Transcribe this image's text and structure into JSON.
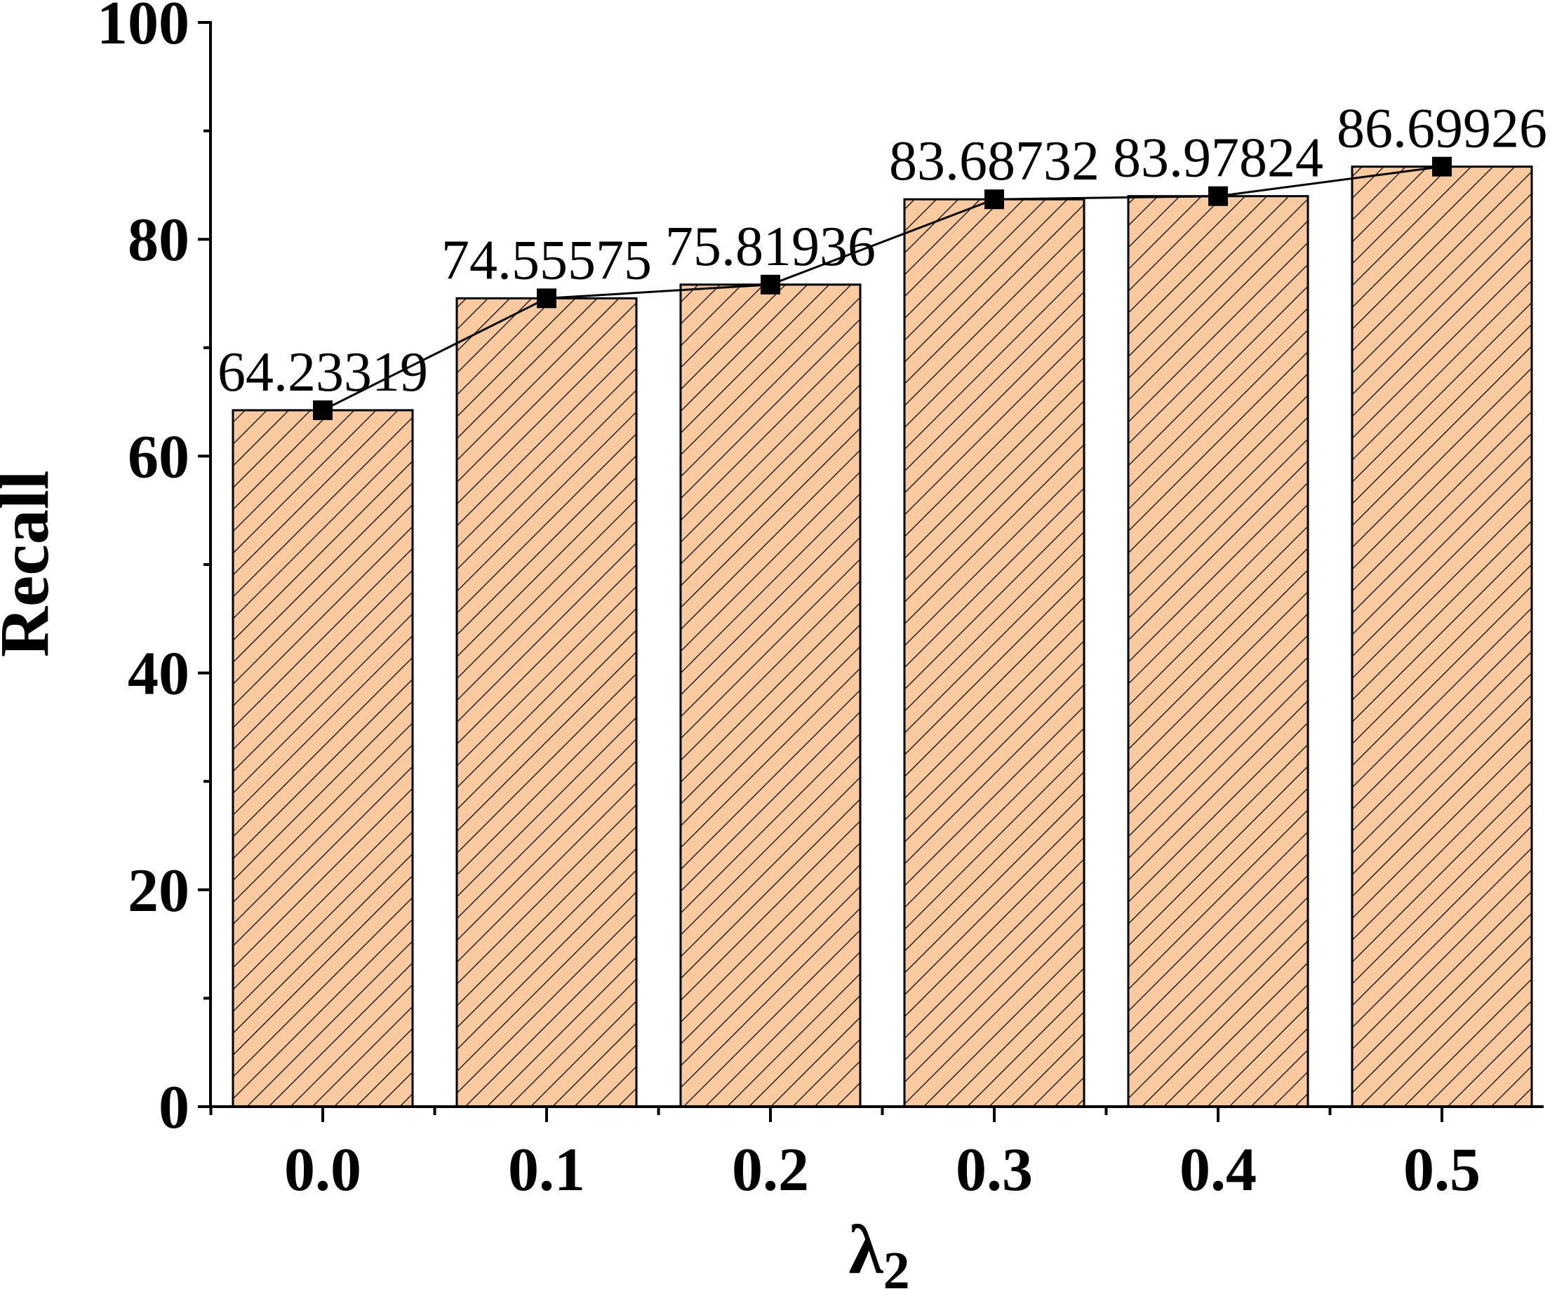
{
  "chart_data": {
    "type": "bar",
    "categories": [
      "0.0",
      "0.1",
      "0.2",
      "0.3",
      "0.4",
      "0.5"
    ],
    "values": [
      64.23319,
      74.55575,
      75.81936,
      83.68732,
      83.97824,
      86.69926
    ],
    "data_labels": [
      "64.23319",
      "74.55575",
      "75.81936",
      "83.68732",
      "83.97824",
      "86.69926"
    ],
    "overlay": "line-with-square-markers",
    "title": "",
    "xlabel": "λ",
    "xlabel_subscript": "2",
    "ylabel": "Recall",
    "ylim": [
      0,
      100
    ],
    "yticks": [
      "0",
      "20",
      "40",
      "60",
      "80",
      "100"
    ],
    "grid": false,
    "bar_fill": "#f9c9a0",
    "bar_pattern": "diagonal-hatch",
    "line_color": "#000000"
  }
}
